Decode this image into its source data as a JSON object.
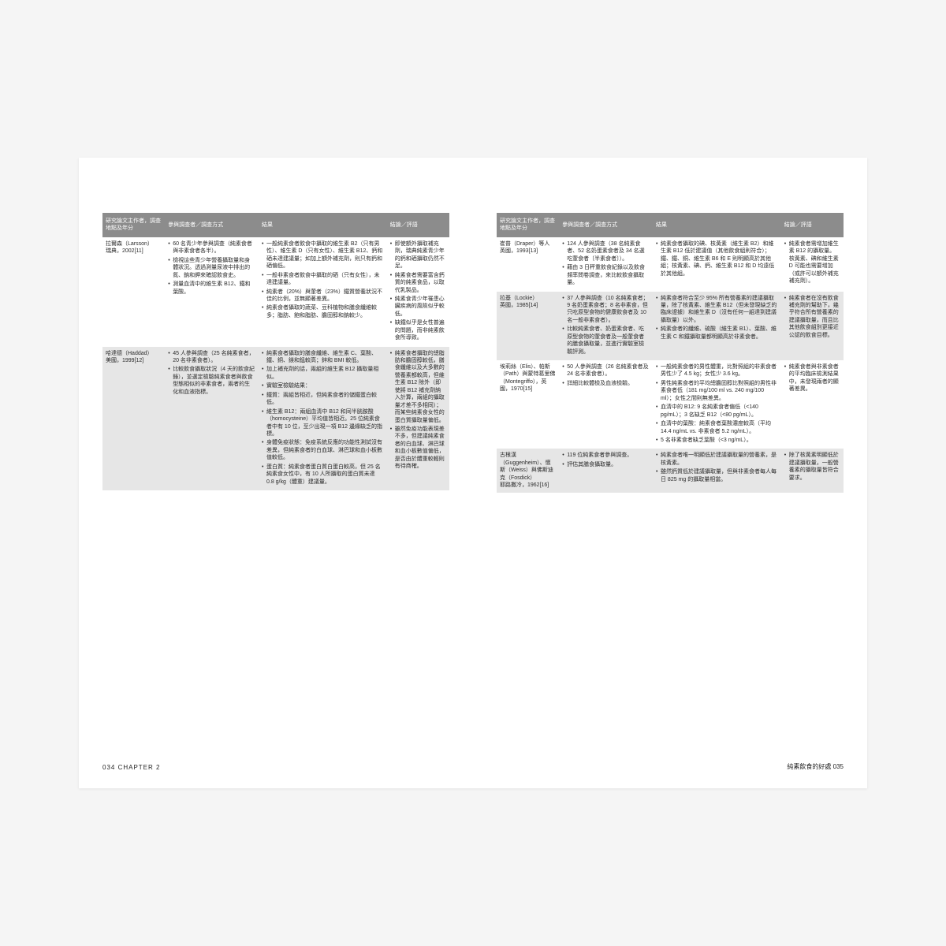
{
  "headers": {
    "author": "研究論文主作者，調查地點及年分",
    "method": "參與調查者／調查方式",
    "result": "結果",
    "conclusion": "結論／評語"
  },
  "leftRows": [
    {
      "shade": false,
      "author": "拉爾森（Larsson）\n瑞典，2002[11]",
      "method": [
        "60 名青少年參與調查（純素食者與非素食者各半）。",
        "檢視這些青少年營養攝取量和身體狀況。透過測量尿液中排出的氮、鈉和鉀來確認飲食史。",
        "測量血清中的維生素 B12、鐵和葉酸。"
      ],
      "result": [
        "一般純素食者飲食中攝取的維生素 B2（只有男性）、維生素 D（只有女性）、維生素 B12、鈣和硒未達建議量；如加上額外補充劑，則只有鈣和硒偏低。",
        "一般非素食者飲食中攝取的硒（只有女性），未達建議量。",
        "純素者（20%）與葷者（23%）鐵質營養狀況不佳的比例，並無顯著差異。",
        "純素食者攝取的蔬菜、豆科植物和膳食纖維較多；脂肪、飽和脂肪、膽固醇和鈉較少。"
      ],
      "conclusion": [
        "即使額外攝取補充劑，瑞典純素青少年的鈣和硒攝取仍然不足。",
        "純素食者需要富含鈣質的純素食品，以取代乳製品。",
        "純素食青少年罹患心臟疾病的風險似乎較低。",
        "缺鐵似乎是女性普遍的問題，而非純素飲食所導致。"
      ]
    },
    {
      "shade": true,
      "author": "哈達德（Haddad）\n美國，1999[12]",
      "method": [
        "45 人參與調查（25 名純素食者，20 名非素食者）。",
        "比較飲食攝取狀況（4 天的飲食紀錄），並選定檢驗純素食者與飲食型態相似的非素食者，兩者的生化和血液指標。"
      ],
      "result": [
        "純素食者攝取的膳食纖維、維生素 C、葉酸、鐵、銅、鎂和錳較高；鋅和 BMI 較低。",
        "加上補充劑的話，兩組的維生素 B12 攝取量相似。",
        "實驗室檢驗結果：",
        "鐵質：兩組皆相近，但純素食者的儲鐵蛋白較低。",
        "維生素 B12：兩組血清中 B12 和同半胱胺酸（homocysteine）平均值皆相近。25 位純素食者中有 10 位，至少出現一項 B12 邊緣缺乏的指標。",
        "身體免疫狀態：免疫系統反應的功能性測試沒有差異，但純素食者的白血球、淋巴球和血小板數值較低。",
        "蛋白質：純素食者蛋白質白蛋白較高，但 25 名純素食女性中，有 10 人所攝取的蛋白質未達 0.8 g/kg（體重）建議量。"
      ],
      "conclusion": [
        "純素食者攝取的總脂肪和膽固醇較低，膳食纖維以及大多數的營養素都較高，但維生素 B12 除外（即使將 B12 補充劑納入計算，兩組的攝取量才差不多相同）；而某些純素食女性的蛋白質攝取量偏低。",
        "雖然免疫功能表現差不多，但建議純素食者的白血球、淋巴球和血小板數值偏低，是否由於體重較輕則有待商榷。"
      ]
    }
  ],
  "rightRows": [
    {
      "shade": false,
      "author": "崔普（Draper）等人\n英國，1993[13]",
      "method": [
        "124 人參與調查（38 名純素食者、52 名奶蛋素食者及 34 名選吃葷食者〔半素食者〕）。",
        "藉由 3 日秤重飲食紀錄以及飲食頻率問卷調查，來比較飲食攝取量。"
      ],
      "result": [
        "純素食者攝取的碘、核黃素（維生素 B2）和維生素 B12 低於建議值（其他飲食組則符合）；鐵、鐵、銅、維生素 B6 和 E 則明顯高於其他組；核黃素、碘、鈣、維生素 B12 和 D 均遠低於其他組。"
      ],
      "conclusion": [
        "純素食者需增加維生素 B12 的攝取量。核黃素、碘和維生素 D 可能也需要增加（或許可以額外補充補充劑）。"
      ]
    },
    {
      "shade": true,
      "author": "拉基（Lockie）\n英國，1985[14]",
      "method": [
        "37 人參與調查（10 名純素食者；9 名奶蛋素食者；8 名非素食，但只吃原型食物的健康飲食者及 10 名一般非素食者）。",
        "比較純素食者、奶蛋素食者、吃原型食物的葷食者及一般葷食者的膳食攝取量，並進行實驗室檢驗評測。"
      ],
      "result": [
        "純素食者符合至少 95% 所有營養素的建議攝取量，除了核黃素、維生素 B12（但未發現缺乏的臨床證據）和維生素 D（沒有任何一組達到建議攝取量）以外。",
        "純素食者的纖維、硫酸（維生素 B1）、葉酸、維生素 C 和鐵攝取量都明顯高於非素食者。"
      ],
      "conclusion": [
        "純素食者在沒有飲食補充劑的幫助下，幾乎符合所有營養素的建議攝取量，而且比其他飲食組別更接近公認的飲食目標。"
      ]
    },
    {
      "shade": false,
      "author": "埃莉絲（Elis）、帕斯（Path）與蒙特葛里佛（Montegriffo），英國，1970[15]",
      "method": [
        "50 人參與調查（26 名純素食者及 24 名非素食者）。",
        "詳細比較體檢及血液檢驗。"
      ],
      "result": [
        "一般純素食者的男性體重，比對照組的非素食者男性少了 4.5 kg；女性少 3.6 kg。",
        "男性純素食者的平均總膽固醇比對照組的男性非素食者低（181 mg/100 ml vs. 240 mg/100 ml）；女性之間則無差異。",
        "血清中的 B12: 9 名純素食者偏低（<140 pg/mL）；3 名缺乏 B12（<80 pg/mL）。",
        "血清中的葉酸：純素食者葉酸濃度較高（平均 14.4 ng/mL vs. 非素食者 5.2 ng/mL）。",
        "5 名非素食者缺乏葉酸（<3 ng/mL）。"
      ],
      "conclusion": [
        "純素食者與非素食者的平均臨床檢測結果中，未發現兩者的顯著差異。"
      ]
    },
    {
      "shade": true,
      "author": "古根漢（Guggenheim）、懷斯（Weiss）與佛斯迪克（Fosdick）\n耶路撒冷，1962[16]",
      "method": [
        "119 位純素食者參與調查。",
        "評估其膳食攝取量。"
      ],
      "result": [
        "純素食者唯一明顯低於建議攝取量的營養素，是核黃素。",
        "雖然鈣質低於建議攝取量，但與非素食者每人每日 825 mg 的攝取量相當。"
      ],
      "conclusion": [
        "除了核黃素明顯低於建議攝取量，一般營養素的攝取量皆符合要求。"
      ]
    }
  ],
  "footerLeft": "034  CHAPTER 2",
  "footerRight": "純素飲食的好處  035"
}
